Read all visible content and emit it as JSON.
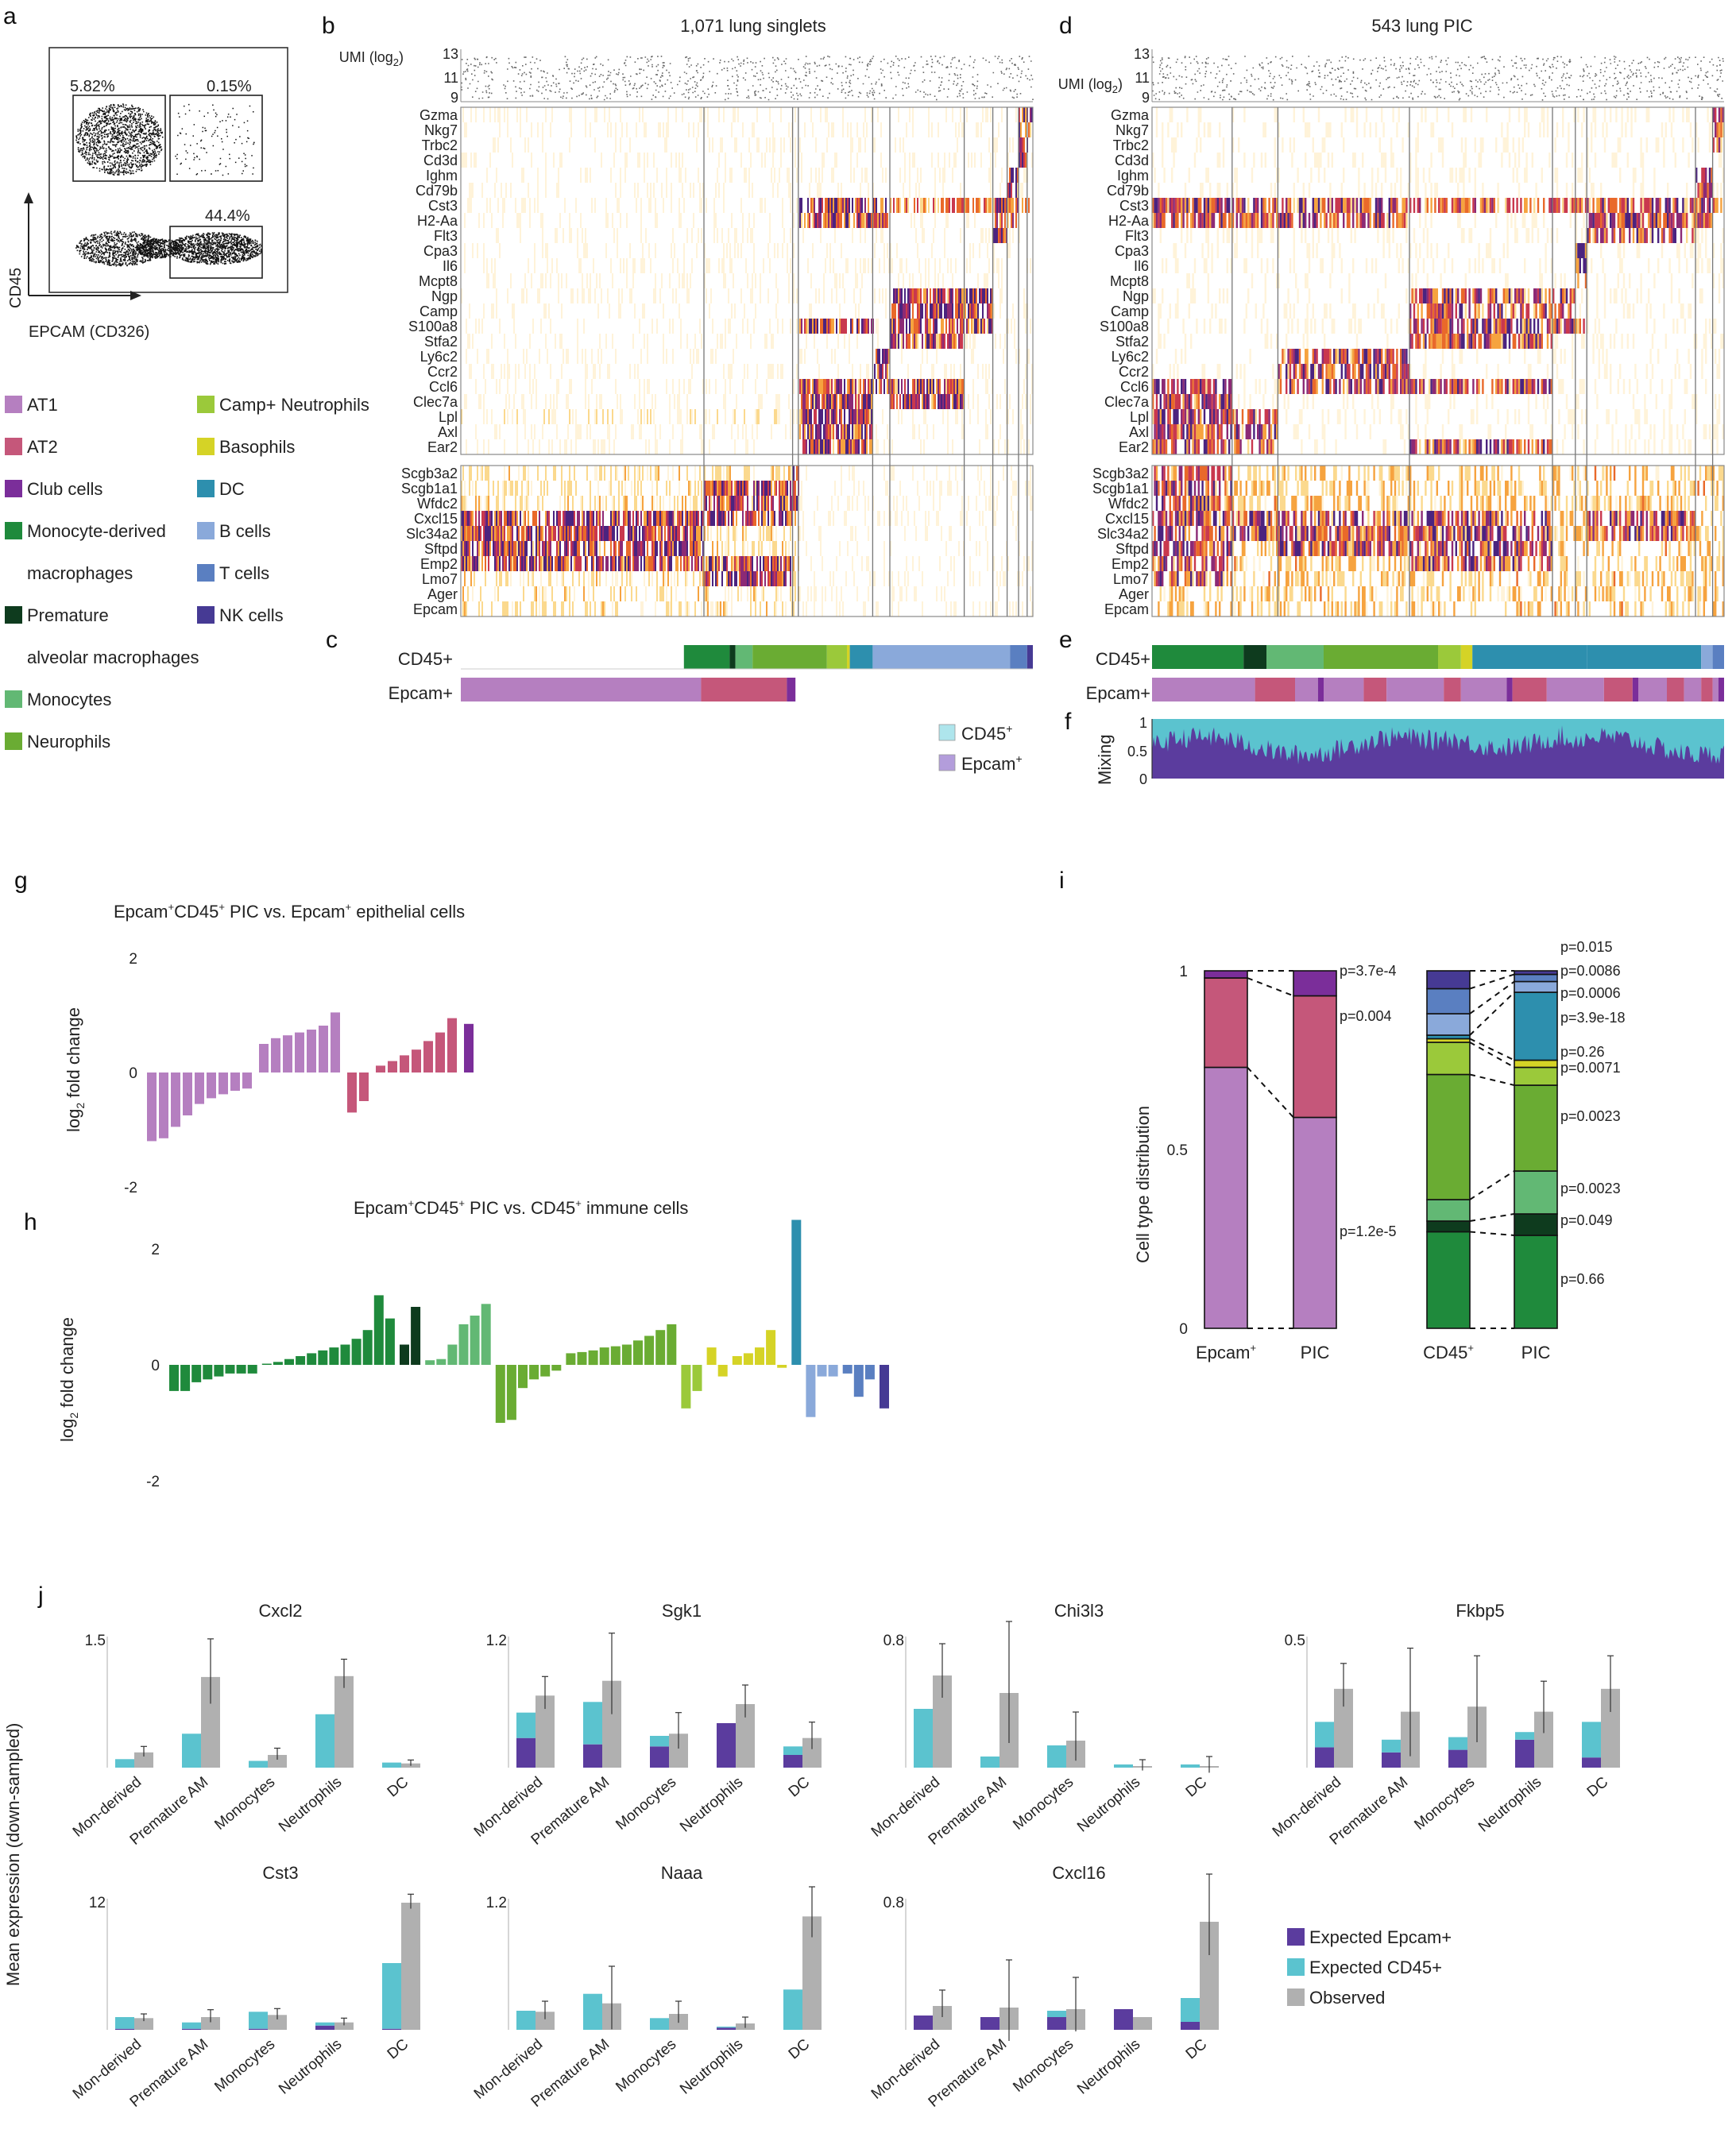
{
  "colors": {
    "AT1": "#b57fc0",
    "AT2": "#c5577a",
    "Club": "#7b2e9a",
    "MonoMac": "#1f8a3c",
    "PremAM": "#0e3b1e",
    "Monocytes": "#62b874",
    "Neutrophils": "#6aac33",
    "CampNeut": "#9bc93a",
    "Basophils": "#d5d326",
    "DC": "#2d8fae",
    "Bcells": "#8aa9da",
    "Tcells": "#5a7fc1",
    "NK": "#463a94",
    "cd45legend": "#aee5ec",
    "epcamlegend": "#b39ddb",
    "expEpcam": "#5b3c9e",
    "expCD45": "#5bc3cf",
    "observed": "#b0b0b0",
    "heatLow": "#fbe3b5",
    "heatMid": "#e7732b",
    "heatHigh": "#c0336f",
    "heatTop": "#4b237f"
  },
  "panels": {
    "a": "a",
    "b": "b",
    "c": "c",
    "d": "d",
    "e": "e",
    "f": "f",
    "g": "g",
    "h": "h",
    "i": "i",
    "j": "j"
  },
  "panel_a": {
    "q_top_left": "5.82%",
    "q_top_right": "0.15%",
    "q_bottom_right": "44.4%",
    "y_label": "CD45",
    "x_label": "EPCAM (CD326)"
  },
  "legend": [
    {
      "label": "AT1",
      "color": "AT1"
    },
    {
      "label": "Camp+ Neutrophils",
      "color": "CampNeut"
    },
    {
      "label": "AT2",
      "color": "AT2"
    },
    {
      "label": "Basophils",
      "color": "Basophils"
    },
    {
      "label": "Club cells",
      "color": "Club"
    },
    {
      "label": "DC",
      "color": "DC"
    },
    {
      "label": "Monocyte-derived",
      "color": "MonoMac"
    },
    {
      "label": "B cells",
      "color": "Bcells"
    },
    {
      "label": "macrophages",
      "color": null
    },
    {
      "label": "T cells",
      "color": "Tcells"
    },
    {
      "label": "Premature",
      "color": "PremAM"
    },
    {
      "label": "NK cells",
      "color": "NK"
    },
    {
      "label": "alveolar macrophages",
      "color": null
    },
    {
      "label": "Monocytes",
      "color": "Monocytes"
    },
    {
      "label": "Neurophils",
      "color": "Neutrophils"
    }
  ],
  "panel_b": {
    "title": "1,071 lung singlets",
    "umi_label": "UMI (log",
    "umi_sub": "2",
    "umi_close": ")",
    "umi_ticks": [
      "13",
      "11",
      "9"
    ]
  },
  "panel_d": {
    "title": "543 lung PIC",
    "umi_label": "UMI (log",
    "umi_sub": "2",
    "umi_close": ")",
    "umi_ticks": [
      "13",
      "11",
      "9"
    ]
  },
  "genes_top": [
    "Gzma",
    "Nkg7",
    "Trbc2",
    "Cd3d",
    "Ighm",
    "Cd79b",
    "Cst3",
    "H2-Aa",
    "Flt3",
    "Cpa3",
    "Il6",
    "Mcpt8",
    "Ngp",
    "Camp",
    "S100a8",
    "Stfa2",
    "Ly6c2",
    "Ccr2",
    "Ccl6",
    "Clec7a",
    "Lpl",
    "Axl",
    "Ear2"
  ],
  "genes_bottom": [
    "Scgb3a2",
    "Scgb1a1",
    "Wfdc2",
    "Cxcl15",
    "Slc34a2",
    "Sftpd",
    "Emp2",
    "Lmo7",
    "Ager",
    "Epcam"
  ],
  "panel_c": {
    "cd45_label": "CD45+",
    "epcam_label": "Epcam+"
  },
  "panel_e": {
    "cd45_label": "CD45+",
    "epcam_label": "Epcam+"
  },
  "panel_f": {
    "y_label": "Mixing",
    "ticks": [
      "1",
      "0.5",
      "0"
    ]
  },
  "cf_legend": {
    "cd45": "CD45",
    "cd45_sup": "+",
    "epcam": "Epcam",
    "epcam_sup": "+"
  },
  "chart_data": [
    {
      "id": "g",
      "type": "bar",
      "title_parts": [
        "Epcam",
        "+",
        "CD45",
        "+",
        " PIC vs. Epcam",
        "+",
        " epithelial cells"
      ],
      "ylabel_main": "log",
      "ylabel_sub": "2",
      "ylabel_rest": " fold change",
      "ylim": [
        -2,
        2
      ],
      "yticks": [
        "2",
        "0",
        "-2"
      ],
      "groups": [
        {
          "color": "AT1",
          "values": [
            -1.2,
            -1.15,
            -0.95,
            -0.75,
            -0.55,
            -0.45,
            -0.38,
            -0.32,
            -0.28
          ]
        },
        {
          "color": "AT1",
          "values": [
            0.5,
            0.6,
            0.65,
            0.7,
            0.75,
            0.82,
            1.05
          ]
        },
        {
          "color": "AT2",
          "values": [
            -0.7,
            -0.5
          ]
        },
        {
          "color": "AT2",
          "values": [
            0.12,
            0.2,
            0.3,
            0.4,
            0.55,
            0.7,
            0.95
          ]
        },
        {
          "color": "Club",
          "values": [
            0.85
          ]
        }
      ]
    },
    {
      "id": "h",
      "type": "bar",
      "title_parts": [
        "Epcam",
        "+",
        "CD45",
        "+",
        " PIC vs. CD45",
        "+",
        " immune cells"
      ],
      "ylabel_main": "log",
      "ylabel_sub": "2",
      "ylabel_rest": " fold change",
      "ylim": [
        -2,
        2
      ],
      "yticks": [
        "2",
        "0",
        "-2"
      ],
      "groups": [
        {
          "color": "MonoMac",
          "values": [
            -0.45,
            -0.45,
            -0.3,
            -0.25,
            -0.2,
            -0.15,
            -0.15,
            -0.15
          ]
        },
        {
          "color": "MonoMac",
          "values": [
            0.02,
            0.05,
            0.1,
            0.15,
            0.2,
            0.25,
            0.3,
            0.35,
            0.45,
            0.6,
            1.2,
            0.8
          ]
        },
        {
          "color": "PremAM",
          "values": [
            0.35,
            1.0
          ]
        },
        {
          "color": "Monocytes",
          "values": [
            0.08,
            0.1,
            0.35,
            0.7,
            0.85,
            1.05
          ]
        },
        {
          "color": "Neutrophils",
          "values": [
            -1.0,
            -0.95,
            -0.4,
            -0.25,
            -0.2,
            -0.1
          ]
        },
        {
          "color": "Neutrophils",
          "values": [
            0.2,
            0.22,
            0.25,
            0.3,
            0.32,
            0.35,
            0.42,
            0.5,
            0.6,
            0.7
          ]
        },
        {
          "color": "CampNeut",
          "values": [
            -0.75,
            -0.45
          ]
        },
        {
          "color": "Basophils",
          "values": [
            0.3,
            -0.2
          ]
        },
        {
          "color": "Basophils",
          "values": [
            0.15,
            0.2,
            0.3,
            0.6,
            -0.05
          ]
        },
        {
          "color": "DC",
          "values": [
            2.5
          ]
        },
        {
          "color": "Bcells",
          "values": [
            -0.9,
            -0.2,
            -0.2
          ]
        },
        {
          "color": "Tcells",
          "values": [
            -0.15,
            -0.55,
            -0.25
          ]
        },
        {
          "color": "NK",
          "values": [
            -0.75
          ]
        }
      ]
    },
    {
      "id": "i",
      "type": "stacked-bar",
      "ylabel": "Cell type distribution",
      "yticks": [
        "1",
        "0.5",
        "0"
      ],
      "categories": [
        "Epcam",
        "PIC",
        "CD45",
        "PIC"
      ],
      "category_sups": [
        "+",
        "",
        "+",
        ""
      ],
      "stacks": [
        [
          {
            "c": "AT1",
            "v": 0.73
          },
          {
            "c": "AT2",
            "v": 0.25
          },
          {
            "c": "Club",
            "v": 0.02
          }
        ],
        [
          {
            "c": "AT1",
            "v": 0.59
          },
          {
            "c": "AT2",
            "v": 0.34
          },
          {
            "c": "Club",
            "v": 0.07
          }
        ],
        [
          {
            "c": "MonoMac",
            "v": 0.27
          },
          {
            "c": "PremAM",
            "v": 0.03
          },
          {
            "c": "Monocytes",
            "v": 0.06
          },
          {
            "c": "Neutrophils",
            "v": 0.35
          },
          {
            "c": "CampNeut",
            "v": 0.09
          },
          {
            "c": "Basophils",
            "v": 0.01
          },
          {
            "c": "DC",
            "v": 0.01
          },
          {
            "c": "Bcells",
            "v": 0.06
          },
          {
            "c": "Tcells",
            "v": 0.07
          },
          {
            "c": "NK",
            "v": 0.05
          }
        ],
        [
          {
            "c": "MonoMac",
            "v": 0.26
          },
          {
            "c": "PremAM",
            "v": 0.06
          },
          {
            "c": "Monocytes",
            "v": 0.12
          },
          {
            "c": "Neutrophils",
            "v": 0.24
          },
          {
            "c": "CampNeut",
            "v": 0.05
          },
          {
            "c": "Basophils",
            "v": 0.02
          },
          {
            "c": "DC",
            "v": 0.19
          },
          {
            "c": "Bcells",
            "v": 0.03
          },
          {
            "c": "Tcells",
            "v": 0.02
          },
          {
            "c": "NK",
            "v": 0.01
          }
        ]
      ],
      "pvals_left": [
        "p=3.7e-4",
        "p=0.004",
        "p=1.2e-5"
      ],
      "pvals_right": [
        "p=0.015",
        "p=0.0086",
        "p=0.0006",
        "p=3.9e-18",
        "p=0.26",
        "p=0.0071",
        "p=0.0023",
        "p=0.0023",
        "p=0.049",
        "p=0.66"
      ]
    },
    {
      "id": "j",
      "type": "grouped-stacked-bar",
      "ylabel": "Mean expression (down-sampled)",
      "categories": [
        "Mon-derived",
        "Premature AM",
        "Monocytes",
        "Neutrophils",
        "DC"
      ],
      "legend": [
        "Expected Epcam+",
        "Expected CD45+",
        "Observed"
      ],
      "subplots": [
        {
          "gene": "Cxcl2",
          "ymax_label": "1.5",
          "ymax": 1.5,
          "expEpcam": [
            0.0,
            0.0,
            0.0,
            0.0,
            0.0
          ],
          "expCD45": [
            0.1,
            0.4,
            0.08,
            0.63,
            0.06
          ],
          "observed": [
            0.18,
            1.07,
            0.15,
            1.08,
            0.05
          ],
          "err": [
            0.07,
            0.45,
            0.08,
            0.2,
            0.04
          ]
        },
        {
          "gene": "Sgk1",
          "ymax_label": "1.2",
          "ymax": 1.2,
          "expEpcam": [
            0.28,
            0.22,
            0.2,
            0.42,
            0.12
          ],
          "expCD45": [
            0.24,
            0.4,
            0.1,
            0.0,
            0.08
          ],
          "observed": [
            0.68,
            0.82,
            0.32,
            0.6,
            0.28
          ],
          "err": [
            0.18,
            0.45,
            0.2,
            0.18,
            0.15
          ]
        },
        {
          "gene": "Chi3l3",
          "ymax_label": "0.8",
          "ymax": 0.8,
          "expEpcam": [
            0.0,
            0.0,
            0.0,
            0.0,
            0.0
          ],
          "expCD45": [
            0.37,
            0.07,
            0.14,
            0.02,
            0.02
          ],
          "observed": [
            0.58,
            0.47,
            0.17,
            0.01,
            0.01
          ],
          "err": [
            0.2,
            0.45,
            0.18,
            0.04,
            0.06
          ]
        },
        {
          "gene": "Fkbp5",
          "ymax_label": "0.5",
          "ymax": 0.5,
          "expEpcam": [
            0.08,
            0.06,
            0.07,
            0.11,
            0.04
          ],
          "expCD45": [
            0.1,
            0.05,
            0.05,
            0.03,
            0.14
          ],
          "observed": [
            0.31,
            0.22,
            0.24,
            0.22,
            0.31
          ],
          "err": [
            0.1,
            0.25,
            0.2,
            0.12,
            0.13
          ]
        },
        {
          "gene": "Cst3",
          "ymax_label": "12",
          "ymax": 12,
          "expEpcam": [
            0.1,
            0.1,
            0.1,
            0.4,
            0.1
          ],
          "expCD45": [
            1.1,
            0.6,
            1.6,
            0.3,
            6.2
          ],
          "observed": [
            1.1,
            1.2,
            1.4,
            0.7,
            12.0
          ],
          "err": [
            0.4,
            0.7,
            0.6,
            0.4,
            0.8
          ]
        },
        {
          "gene": "Naaa",
          "ymax_label": "1.2",
          "ymax": 1.2,
          "expEpcam": [
            0.0,
            0.0,
            0.0,
            0.02,
            0.0
          ],
          "expCD45": [
            0.18,
            0.34,
            0.11,
            0.01,
            0.38
          ],
          "observed": [
            0.17,
            0.25,
            0.15,
            0.06,
            1.07
          ],
          "err": [
            0.1,
            0.35,
            0.12,
            0.06,
            0.28
          ]
        },
        {
          "gene": "Cxcl16",
          "ymax_label": "0.8",
          "ymax": 0.8,
          "expEpcam": [
            0.09,
            0.08,
            0.08,
            0.13,
            0.05
          ],
          "expCD45": [
            0.0,
            0.0,
            0.04,
            0.0,
            0.15
          ],
          "observed": [
            0.15,
            0.14,
            0.13,
            0.08,
            0.68
          ],
          "err": [
            0.1,
            0.3,
            0.2,
            0.0,
            0.3
          ]
        }
      ]
    }
  ]
}
